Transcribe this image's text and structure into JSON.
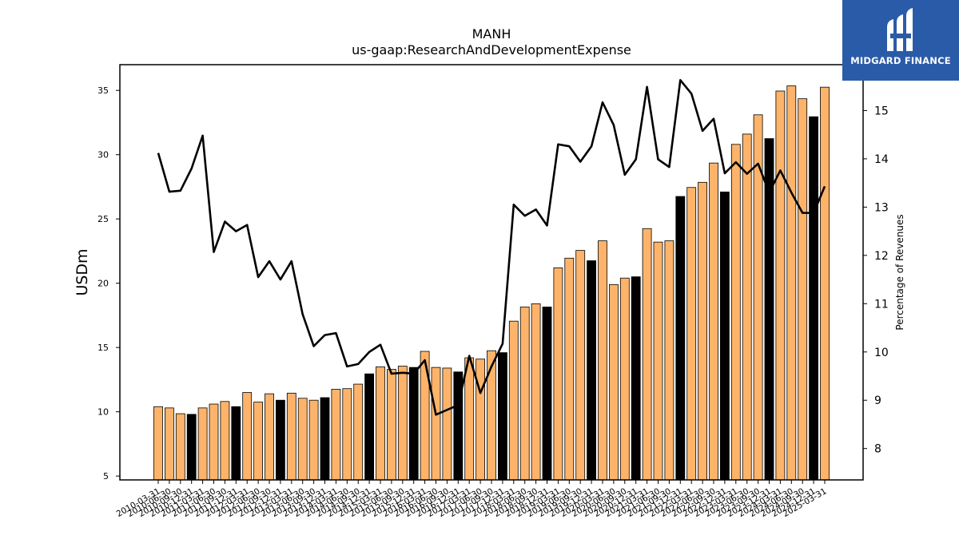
{
  "logo": {
    "text": "MIDGARD FINANCE",
    "background": "#2a5ba8"
  },
  "chart_data": {
    "type": "bar",
    "title": "MANH",
    "subtitle": "us-gaap:ResearchAndDevelopmentExpense",
    "ylabel": "USDm",
    "ylabel_right": "Percentage of Revenues",
    "ylim": [
      4.7,
      37
    ],
    "ylim_right": [
      7.35,
      15.95
    ],
    "yticks": [
      5,
      10,
      15,
      20,
      25,
      30,
      35
    ],
    "yticks_right": [
      8,
      9,
      10,
      11,
      12,
      13,
      14,
      15
    ],
    "bar_color": "#fdb46a",
    "bar_color_q4": "#000000",
    "line_color": "#000000",
    "categories": [
      "2010-03-31",
      "2010-06-30",
      "2010-09-30",
      "2010-12-31",
      "2011-03-31",
      "2011-06-30",
      "2011-09-30",
      "2011-12-31",
      "2012-03-31",
      "2012-06-30",
      "2012-09-30",
      "2012-12-31",
      "2013-03-31",
      "2013-06-30",
      "2013-09-30",
      "2013-12-31",
      "2014-03-31",
      "2014-06-30",
      "2014-09-30",
      "2014-12-31",
      "2015-03-31",
      "2015-06-30",
      "2015-09-30",
      "2015-12-31",
      "2016-03-31",
      "2016-06-30",
      "2016-09-30",
      "2016-12-31",
      "2017-03-31",
      "2017-06-30",
      "2017-09-30",
      "2017-12-31",
      "2018-03-31",
      "2018-06-30",
      "2018-09-30",
      "2018-12-31",
      "2019-03-31",
      "2019-06-30",
      "2019-09-30",
      "2019-12-31",
      "2020-03-31",
      "2020-06-30",
      "2020-09-30",
      "2020-12-31",
      "2021-03-31",
      "2021-06-30",
      "2021-09-30",
      "2021-12-31",
      "2022-03-31",
      "2022-06-30",
      "2022-09-30",
      "2022-12-31",
      "2023-03-31",
      "2023-06-30",
      "2023-09-30",
      "2023-12-31",
      "2024-03-31",
      "2024-06-30",
      "2024-09-30",
      "2024-12-31",
      "2025-03-31"
    ],
    "x_tick_labels": [
      "2010-03-31",
      "2010-06-30",
      "2010-09-30",
      "2010-12-31",
      "2011-03-31",
      "2011-06-30",
      "2011-09-30",
      "2011-12-31",
      "2012-03-31",
      "2012-06-30",
      "2012-09-30",
      "2012-12-31",
      "2013-03-31",
      "2013-06-30",
      "2013-09-30",
      "2013-12-31",
      "2014-03-31",
      "2014-06-30",
      "2014-09-30",
      "2014-12-31",
      "2015-03-31",
      "2015-06-30",
      "2015-09-30",
      "2015-12-31",
      "2016-03-31",
      "2016-06-30",
      "2016-09-30",
      "2016-12-31",
      "2017-03-31",
      "2017-06-30",
      "2017-09-30",
      "2017-12-31",
      "2018-03-31",
      "2018-06-30",
      "2018-09-30",
      "2018-12-31",
      "2019-03-31",
      "2019-06-30",
      "2019-09-30",
      "2019-12-31",
      "2020-03-31",
      "2020-06-30",
      "2020-09-30",
      "2020-12-31",
      "2021-03-31",
      "2021-06-30",
      "2021-09-30",
      "2021-12-31",
      "2022-03-31",
      "2022-06-30",
      "2022-09-30",
      "2022-12-31",
      "2023-03-31",
      "2023-06-30",
      "2023-09-30",
      "2023-12-31",
      "2024-03-31",
      "2024-06-30",
      "2024-09-30",
      "2024-12-31",
      "2025-03-31"
    ],
    "series": [
      {
        "type": "bar",
        "axis": "left",
        "values": [
          10.4,
          10.3,
          9.85,
          9.8,
          10.3,
          10.6,
          10.8,
          10.4,
          11.5,
          10.75,
          11.4,
          10.9,
          11.45,
          11.05,
          10.9,
          11.1,
          11.75,
          11.8,
          12.15,
          12.95,
          13.5,
          13.3,
          13.55,
          13.45,
          14.7,
          13.45,
          13.4,
          13.1,
          14.2,
          14.1,
          14.75,
          14.6,
          17.05,
          18.15,
          18.4,
          18.15,
          21.2,
          21.95,
          22.55,
          21.75,
          23.3,
          19.9,
          20.4,
          20.5,
          24.25,
          23.2,
          23.3,
          26.75,
          27.45,
          27.85,
          29.35,
          27.1,
          30.8,
          31.6,
          33.1,
          31.25,
          34.95,
          35.35,
          34.35,
          32.95,
          35.25
        ]
      },
      {
        "type": "line",
        "axis": "right",
        "values": [
          14.12,
          13.32,
          13.34,
          13.8,
          14.48,
          12.07,
          12.7,
          12.5,
          12.63,
          11.55,
          11.88,
          11.5,
          11.88,
          10.78,
          10.12,
          10.35,
          10.39,
          9.7,
          9.75,
          10.0,
          10.15,
          9.55,
          9.57,
          9.55,
          9.83,
          8.7,
          8.8,
          8.9,
          9.92,
          9.15,
          9.7,
          10.17,
          13.05,
          12.82,
          12.95,
          12.62,
          14.3,
          14.26,
          13.94,
          14.26,
          15.17,
          14.7,
          13.67,
          13.99,
          15.49,
          13.99,
          13.83,
          15.63,
          15.35,
          14.58,
          14.83,
          13.7,
          13.93,
          13.69,
          13.9,
          13.3,
          13.76,
          13.3,
          12.88,
          12.88,
          13.43
        ]
      }
    ]
  }
}
